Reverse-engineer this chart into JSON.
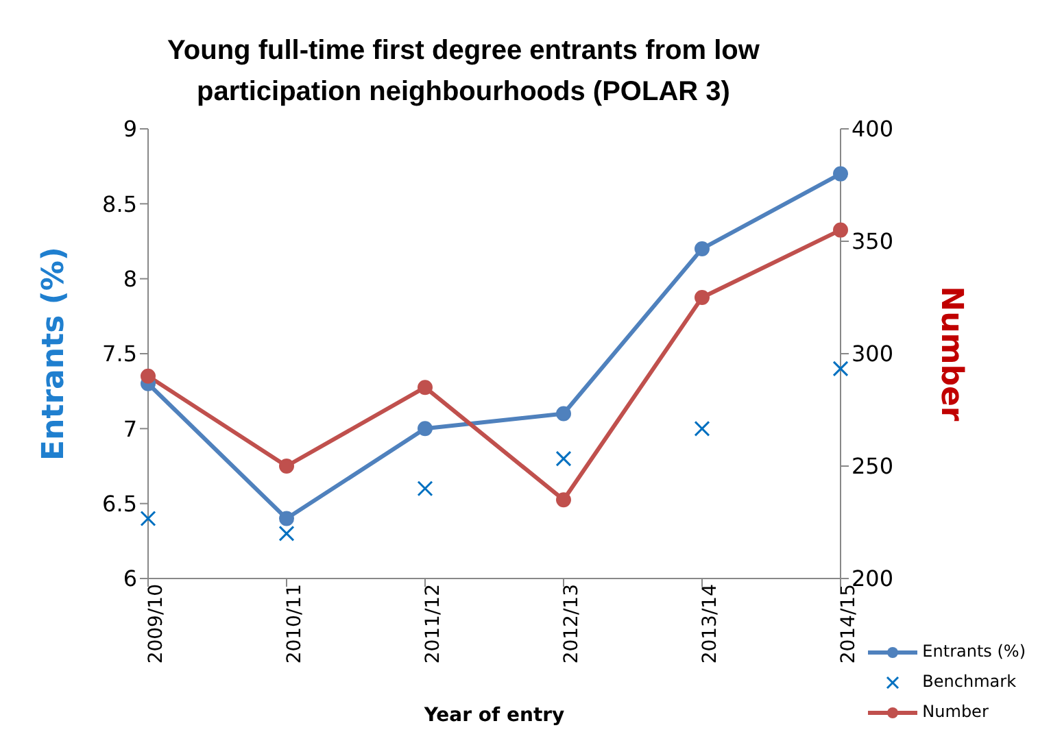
{
  "chart_data": {
    "type": "line",
    "title": "Young full-time first degree entrants from low participation neighbourhoods (POLAR 3)",
    "xlabel": "Year of entry",
    "ylabel": "Entrants (%)",
    "y2label": "Number",
    "categories": [
      "2009/10",
      "2010/11",
      "2011/12",
      "2012/13",
      "2013/14",
      "2014/15"
    ],
    "series": [
      {
        "name": "Entrants (%)",
        "marker": "circle",
        "color": "#4f81bd",
        "values": [
          7.3,
          6.4,
          7.0,
          7.1,
          8.2,
          8.7
        ]
      },
      {
        "name": "Benchmark",
        "type": "scatter",
        "marker": "cross",
        "color": "#0070c0",
        "values": [
          6.4,
          6.3,
          6.6,
          6.8,
          7.0,
          7.4
        ]
      },
      {
        "name": "Number",
        "marker": "circle",
        "color": "#c0504d",
        "axis": "y2",
        "values": [
          290,
          250,
          285,
          235,
          325,
          355
        ]
      }
    ],
    "ylim": [
      6,
      9
    ],
    "yticks": [
      6,
      6.5,
      7,
      7.5,
      8,
      8.5,
      9
    ],
    "y2lim": [
      200,
      400
    ],
    "y2ticks": [
      200,
      250,
      300,
      350,
      400
    ],
    "grid": false,
    "legend": "bottom right"
  }
}
